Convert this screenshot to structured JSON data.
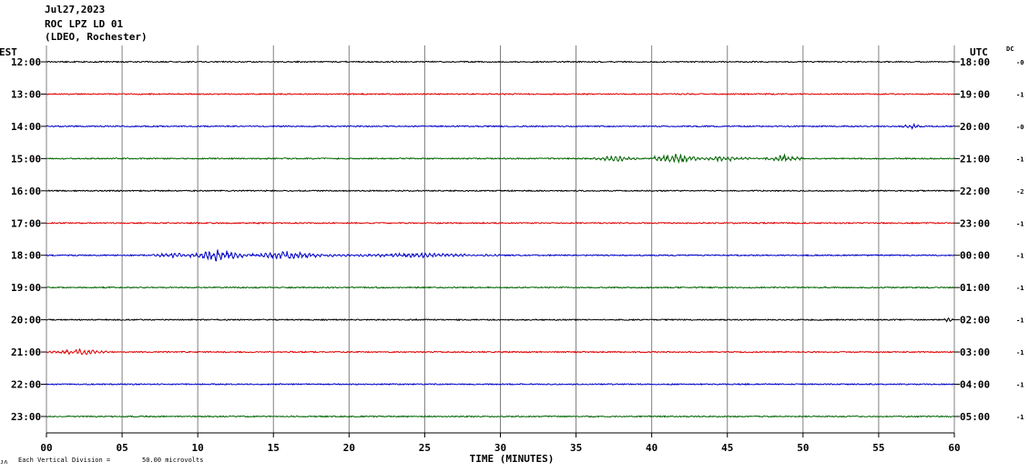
{
  "header": {
    "date": "Jul27,2023",
    "station": "ROC LPZ LD 01",
    "network": "(LDEO, Rochester)"
  },
  "chart_data": {
    "type": "line",
    "title": "ROC LPZ LD 01",
    "xlabel": "TIME (MINUTES)",
    "left_axis_title": "EST",
    "right_axis_title": "UTC",
    "dc_title": "DC",
    "xlim": [
      0,
      60
    ],
    "x_ticks": [
      "00",
      "05",
      "10",
      "15",
      "20",
      "25",
      "30",
      "35",
      "40",
      "45",
      "50",
      "55",
      "60"
    ],
    "grid": true,
    "scale_note_prefix": "Each Vertical Division =",
    "scale_note_value": "50.00 microvolts",
    "rows": [
      {
        "est": "12:00",
        "utc": "18:00",
        "dc": "-0",
        "color": "#000000",
        "events": []
      },
      {
        "est": "13:00",
        "utc": "19:00",
        "dc": "-1",
        "color": "#e00000",
        "events": []
      },
      {
        "est": "14:00",
        "utc": "20:00",
        "dc": "-0",
        "color": "#0000c8",
        "events": [
          [
            56.5,
            57.8,
            2.5
          ]
        ]
      },
      {
        "est": "15:00",
        "utc": "21:00",
        "dc": "-1",
        "color": "#006400",
        "events": [
          [
            36,
            39,
            2.5
          ],
          [
            40.2,
            43,
            5
          ],
          [
            43,
            46.5,
            2.5
          ],
          [
            47.5,
            50,
            3.5
          ]
        ]
      },
      {
        "est": "16:00",
        "utc": "22:00",
        "dc": "-2",
        "color": "#000000",
        "events": []
      },
      {
        "est": "17:00",
        "utc": "23:00",
        "dc": "-1",
        "color": "#e00000",
        "events": []
      },
      {
        "est": "18:00",
        "utc": "00:00",
        "dc": "-1",
        "color": "#0000c8",
        "events": [
          [
            7,
            9.5,
            2.5
          ],
          [
            9.5,
            13,
            5.5
          ],
          [
            13,
            19,
            3.5
          ],
          [
            19,
            30,
            2
          ]
        ]
      },
      {
        "est": "19:00",
        "utc": "01:00",
        "dc": "-1",
        "color": "#006400",
        "events": []
      },
      {
        "est": "20:00",
        "utc": "02:00",
        "dc": "-1",
        "color": "#000000",
        "events": [
          [
            59.3,
            60,
            2.5
          ]
        ]
      },
      {
        "est": "21:00",
        "utc": "03:00",
        "dc": "-1",
        "color": "#e00000",
        "events": [
          [
            0,
            4.2,
            2.5
          ]
        ]
      },
      {
        "est": "22:00",
        "utc": "04:00",
        "dc": "-1",
        "color": "#0000c8",
        "events": []
      },
      {
        "est": "23:00",
        "utc": "05:00",
        "dc": "-1",
        "color": "#006400",
        "events": []
      }
    ]
  }
}
